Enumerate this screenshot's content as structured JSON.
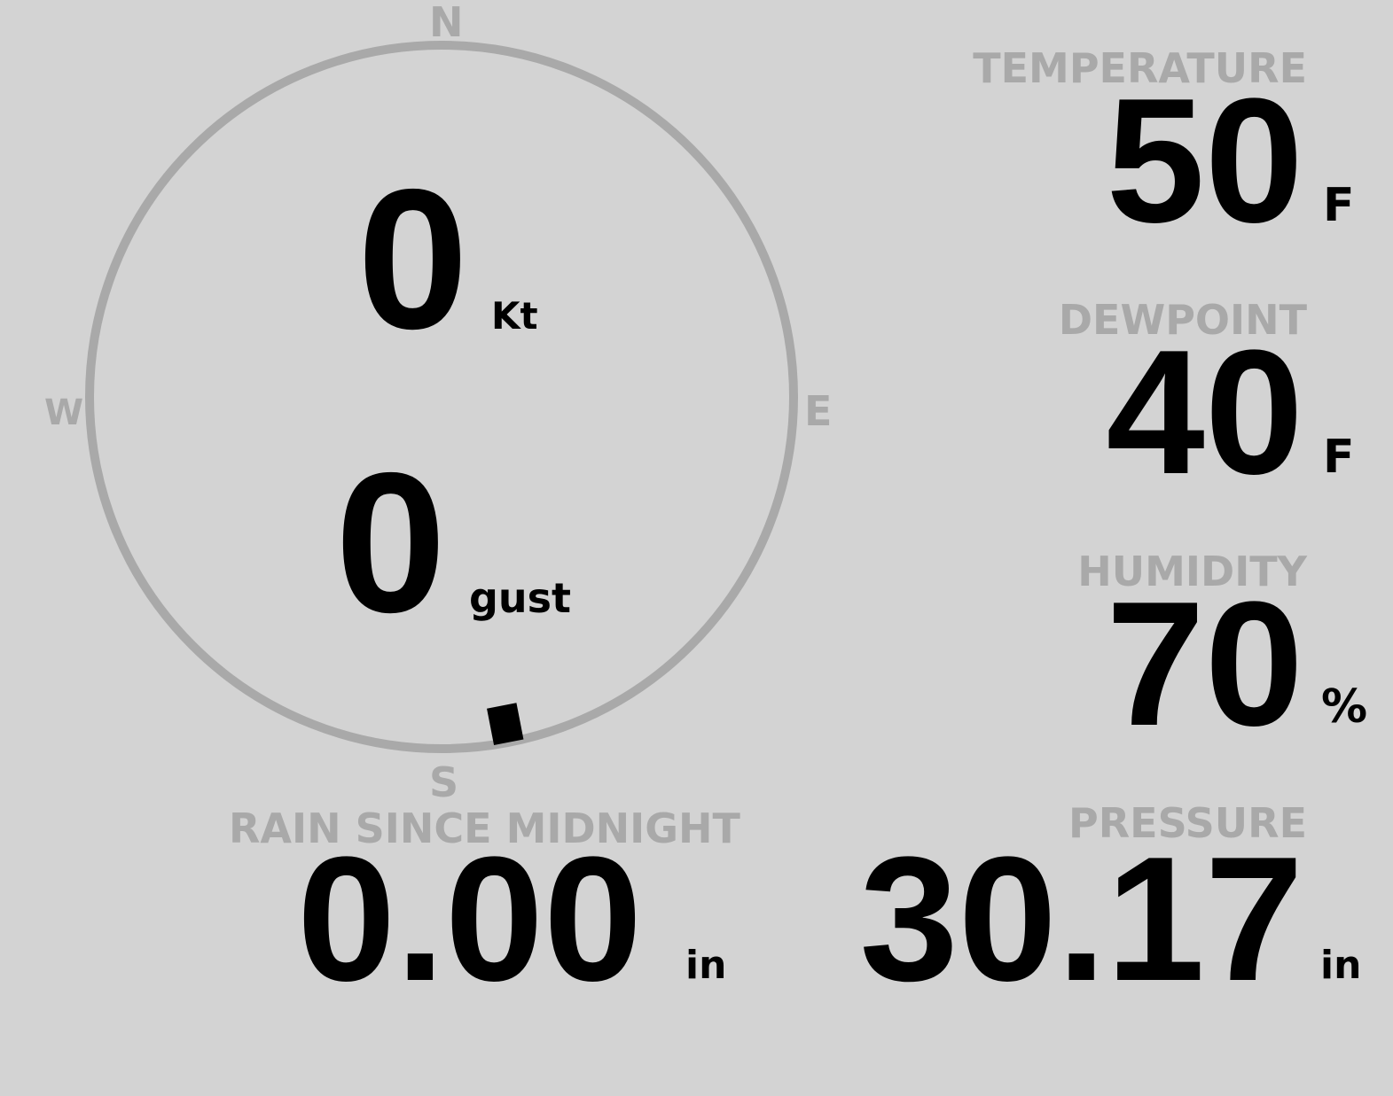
{
  "compass": {
    "north": "N",
    "south": "S",
    "east": "E",
    "west": "W",
    "wind_direction_deg": 169,
    "ring_color": "#a9a9a9",
    "needle_color": "#000000"
  },
  "wind": {
    "speed": "0",
    "speed_unit": "Kt",
    "gust": "0",
    "gust_unit": "gust"
  },
  "rain": {
    "label": "RAIN SINCE MIDNIGHT",
    "value": "0.00",
    "unit": "in"
  },
  "temperature": {
    "label": "TEMPERATURE",
    "value": "50",
    "unit": "F"
  },
  "dewpoint": {
    "label": "DEWPOINT",
    "value": "40",
    "unit": "F"
  },
  "humidity": {
    "label": "HUMIDITY",
    "value": "70",
    "unit": "%"
  },
  "pressure": {
    "label": "PRESSURE",
    "value": "30.17",
    "unit": "in"
  },
  "colors": {
    "background": "#d3d3d3",
    "label": "#a9a9a9",
    "value": "#000000"
  }
}
